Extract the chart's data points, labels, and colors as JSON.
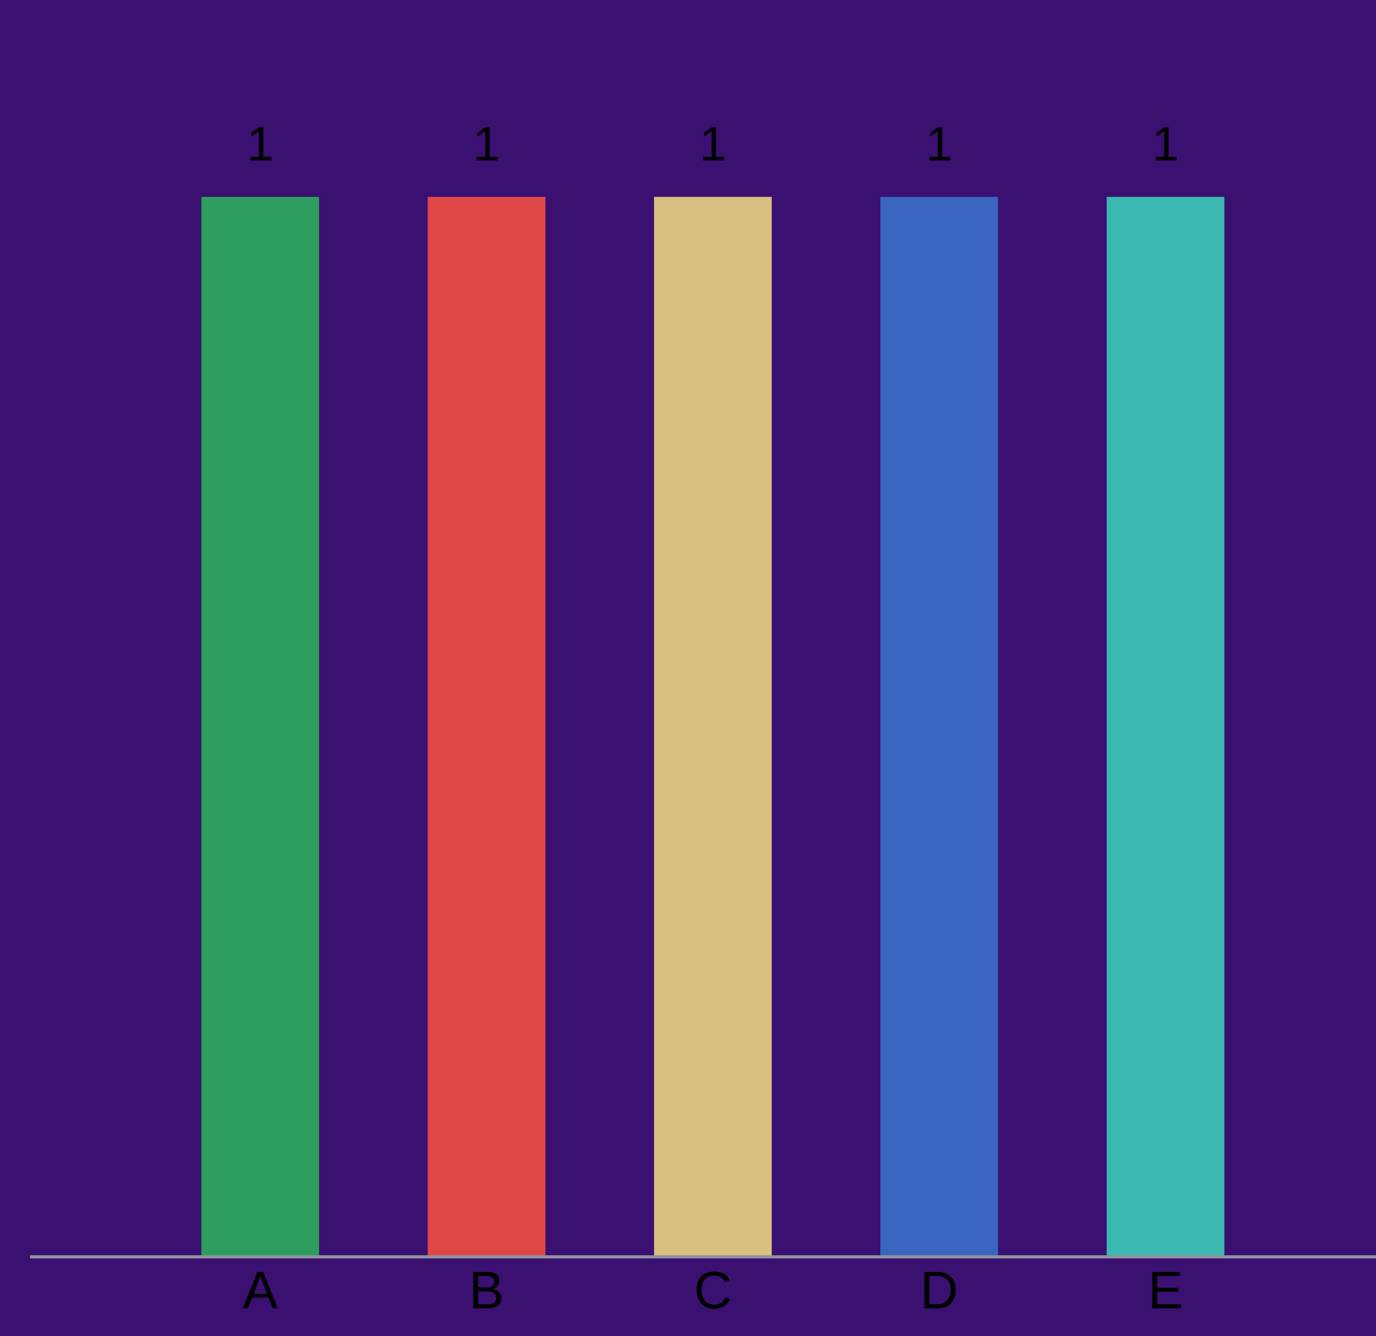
{
  "chart_data": {
    "type": "bar",
    "categories": [
      "A",
      "B",
      "C",
      "D",
      "E"
    ],
    "values": [
      1,
      1,
      1,
      1,
      1
    ],
    "colors": [
      "#2e9e5e",
      "#e04848",
      "#d8c080",
      "#3a66c0",
      "#3ab8b0"
    ],
    "data_labels": true,
    "grid": false,
    "legend": false
  }
}
